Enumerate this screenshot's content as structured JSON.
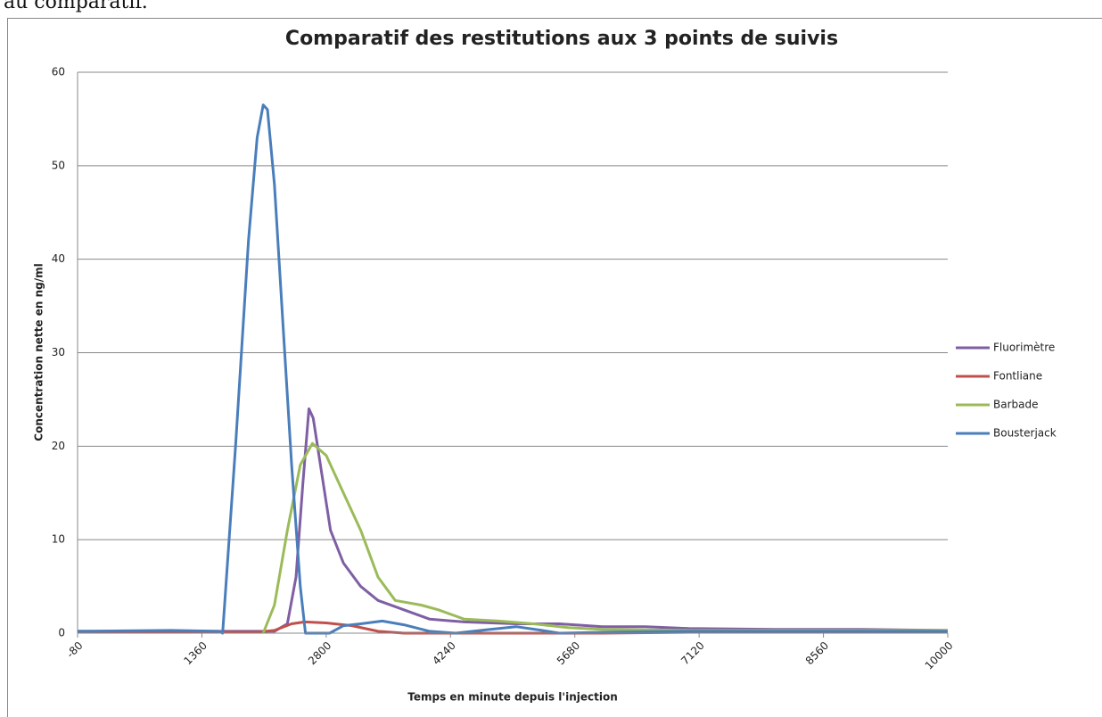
{
  "doc_text": "au comparatif.",
  "chart_data": {
    "type": "line",
    "title": "Comparatif des restitutions aux 3 points de suivis",
    "xlabel": "Temps en minute depuis l'injection",
    "ylabel": "Concentration nette en ng/ml",
    "xlim": [
      -80,
      10000
    ],
    "xticks": [
      -80,
      1360,
      2800,
      4240,
      5680,
      7120,
      8560,
      10000
    ],
    "ylim": [
      0,
      60
    ],
    "yticks": [
      0,
      10,
      20,
      30,
      40,
      50,
      60
    ],
    "grid": true,
    "legend": "right",
    "series": [
      {
        "name": "Fluorimètre",
        "color": "#7f5fa3",
        "x": [
          -80,
          2200,
          2350,
          2450,
          2530,
          2600,
          2650,
          2750,
          2850,
          3000,
          3200,
          3400,
          3700,
          4000,
          4400,
          5000,
          5500,
          6000,
          6500,
          7000,
          8000,
          9000,
          10000
        ],
        "values": [
          0.2,
          0.2,
          1,
          6,
          16,
          24,
          23,
          17,
          11,
          7.5,
          5,
          3.5,
          2.5,
          1.5,
          1.2,
          1,
          1,
          0.7,
          0.7,
          0.5,
          0.4,
          0.4,
          0.3
        ]
      },
      {
        "name": "Fontliane",
        "color": "#c0504d",
        "x": [
          -80,
          2000,
          2200,
          2400,
          2550,
          2800,
          3100,
          3400,
          3700,
          6000,
          7000,
          10000
        ],
        "values": [
          0.2,
          0.1,
          0.3,
          1,
          1.2,
          1.1,
          0.8,
          0.2,
          0,
          0,
          0.1,
          0.1
        ]
      },
      {
        "name": "Barbade",
        "color": "#9bbb59",
        "x": [
          2070,
          2200,
          2350,
          2500,
          2640,
          2800,
          3000,
          3200,
          3400,
          3600,
          3900,
          4100,
          4400,
          4800,
          5200,
          5600,
          6000,
          7000,
          8000,
          10000
        ],
        "values": [
          0,
          3,
          11,
          18,
          20.3,
          19,
          15,
          11,
          6,
          3.5,
          3,
          2.5,
          1.5,
          1.3,
          1,
          0.6,
          0.4,
          0.3,
          0.3,
          0.3
        ]
      },
      {
        "name": "Bousterjack",
        "color": "#4a7ebb",
        "x": [
          -80,
          1000,
          1560,
          1600,
          1750,
          1900,
          2000,
          2070,
          2120,
          2200,
          2300,
          2400,
          2500,
          2560,
          2840,
          3000,
          3200,
          3450,
          3700,
          4000,
          4300,
          4700,
          5000,
          5300,
          5500,
          6000,
          7000,
          8000,
          10000
        ],
        "values": [
          0.2,
          0.3,
          0.2,
          0,
          20,
          42,
          53,
          56.5,
          56,
          48,
          33,
          18,
          5,
          0,
          0,
          0.8,
          1,
          1.3,
          0.9,
          0.2,
          0,
          0.4,
          0.7,
          0.3,
          0,
          0.1,
          0.2,
          0.2,
          0.2
        ]
      }
    ]
  }
}
